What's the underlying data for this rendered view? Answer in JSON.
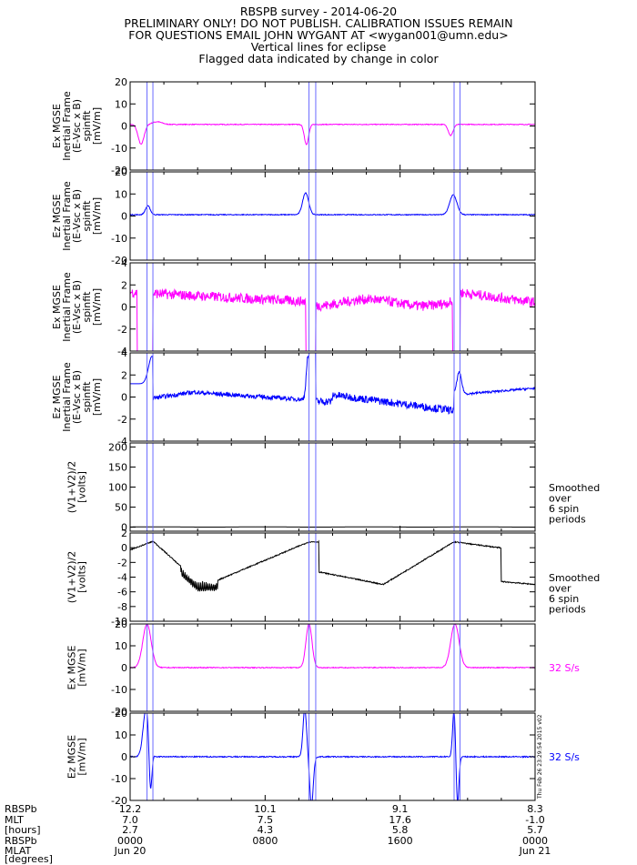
{
  "header": {
    "lines": [
      "RBSPB survey - 2014-06-20",
      "PRELIMINARY ONLY! DO NOT PUBLISH. CALIBRATION ISSUES REMAIN",
      "FOR QUESTIONS EMAIL JOHN WYGANT AT <wygan001@umn.edu>",
      "Vertical lines for eclipse",
      "Flagged data indicated by change in color"
    ]
  },
  "colors": {
    "magenta": "#ff00ff",
    "blue": "#0000ff",
    "black": "#000000",
    "eclipse": "#6a6aff"
  },
  "eclipse_hours": [
    1.0,
    1.35,
    10.6,
    11.0,
    19.2,
    19.55
  ],
  "chart_data": [
    {
      "type": "line",
      "ylabel": [
        "Ex MGSE",
        "Inertial Frame",
        "(E-Vsc x B)",
        "spinfit",
        "[mV/m]"
      ],
      "ylim": [
        -20,
        20
      ],
      "yticks": [
        20,
        10,
        0,
        -10,
        -20
      ],
      "color": "magenta",
      "right_label": []
    },
    {
      "type": "line",
      "ylabel": [
        "Ez MGSE",
        "Inertial Frame",
        "(E-Vsc x B)",
        "spinfit",
        "[mV/m]"
      ],
      "ylim": [
        -20,
        20
      ],
      "yticks": [
        20,
        10,
        0,
        -10,
        -20
      ],
      "color": "blue",
      "right_label": []
    },
    {
      "type": "line",
      "ylabel": [
        "Ex MGSE",
        "Inertial Frame",
        "(E-Vsc x B)",
        "spinfit",
        "[mV/m]"
      ],
      "ylim": [
        -4,
        4
      ],
      "yticks": [
        4,
        2,
        0,
        -2,
        -4
      ],
      "color": "magenta",
      "right_label": []
    },
    {
      "type": "line",
      "ylabel": [
        "Ez MGSE",
        "Inertial Frame",
        "(E-Vsc x B)",
        "spinfit",
        "[mV/m]"
      ],
      "ylim": [
        -4,
        4
      ],
      "yticks": [
        4,
        2,
        0,
        -2,
        -4
      ],
      "color": "blue",
      "right_label": []
    },
    {
      "type": "line",
      "ylabel": [
        "(V1+V2)/2",
        "[volts]"
      ],
      "ylim": [
        -10,
        210
      ],
      "yticks": [
        200,
        150,
        100,
        50,
        0
      ],
      "color": "black",
      "right_label": [
        "Smoothed",
        "over",
        "6 spin",
        "periods"
      ]
    },
    {
      "type": "line",
      "ylabel": [
        "(V1+V2)/2",
        "[volts]"
      ],
      "ylim": [
        -10,
        2
      ],
      "yticks": [
        2,
        0,
        -2,
        -4,
        -6,
        -8,
        -10
      ],
      "color": "black",
      "right_label": [
        "Smoothed",
        "over",
        "6 spin",
        "periods"
      ]
    },
    {
      "type": "line",
      "ylabel": [
        "Ex MGSE",
        "[mV/m]"
      ],
      "ylim": [
        -20,
        20
      ],
      "yticks": [
        20,
        10,
        0,
        -10,
        -20
      ],
      "color": "magenta",
      "right_label": [
        "32 S/s"
      ]
    },
    {
      "type": "line",
      "ylabel": [
        "Ez MGSE",
        "[mV/m]"
      ],
      "ylim": [
        -20,
        20
      ],
      "yticks": [
        20,
        10,
        0,
        -10,
        -20
      ],
      "color": "blue",
      "right_label": [
        "32 S/s"
      ]
    }
  ],
  "xaxis": {
    "xlim": [
      0,
      24
    ],
    "major_hours": [
      0,
      8,
      16,
      24
    ],
    "minor_hours": [
      2,
      4,
      6,
      10,
      12,
      14,
      18,
      20,
      22
    ],
    "row_labels": [
      "RBSPb",
      "MLT",
      "[hours]",
      "RBSPb",
      "MLAT",
      "[degrees]"
    ],
    "columns": [
      {
        "hour": 0,
        "rows": [
          "12.2",
          "7.0",
          "2.7",
          "0000",
          "Jun 20"
        ]
      },
      {
        "hour": 8,
        "rows": [
          "10.1",
          "7.5",
          "4.3",
          "0800",
          ""
        ]
      },
      {
        "hour": 16,
        "rows": [
          "9.1",
          "17.6",
          "5.8",
          "1600",
          ""
        ]
      },
      {
        "hour": 24,
        "rows": [
          "8.3",
          "-1.0",
          "5.7",
          "0000",
          "Jun 21"
        ]
      }
    ]
  },
  "timestamp": "Thu Feb 26 23:29:54 2015 v02"
}
